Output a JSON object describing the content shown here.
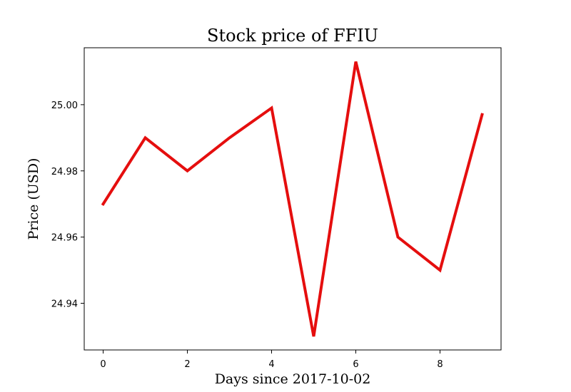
{
  "chart_data": {
    "type": "line",
    "title": "Stock price of FFIU",
    "xlabel": "Days since 2017-10-02",
    "ylabel": "Price (USD)",
    "x": [
      0,
      1,
      2,
      3,
      4,
      5,
      6,
      7,
      8,
      9
    ],
    "series": [
      {
        "values": [
          24.97,
          24.99,
          24.98,
          24.99,
          24.999,
          24.93,
          25.013,
          24.96,
          24.95,
          24.997
        ],
        "color": "#e50e0e"
      }
    ],
    "xlim": [
      -0.45,
      9.45
    ],
    "ylim": [
      24.9259,
      25.0172
    ],
    "xticks": [
      0,
      2,
      4,
      6,
      8
    ],
    "xtick_labels": [
      "0",
      "2",
      "4",
      "6",
      "8"
    ],
    "yticks": [
      24.94,
      24.96,
      24.98,
      25.0
    ],
    "ytick_labels": [
      "24.94",
      "24.96",
      "24.98",
      "25.00"
    ],
    "grid": false,
    "legend": "none"
  }
}
